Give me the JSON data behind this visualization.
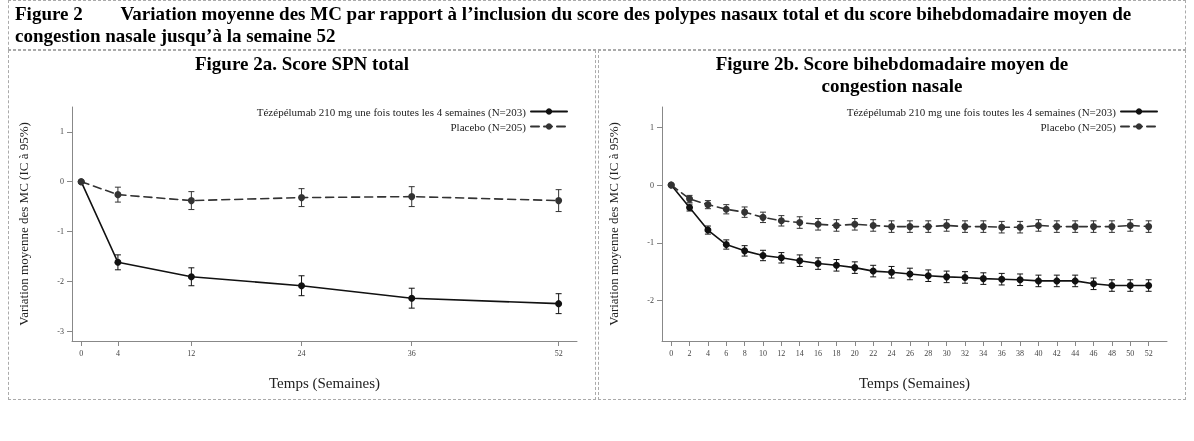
{
  "chart_data": [
    {
      "type": "line",
      "title": "Figure 2a. Score SPN total",
      "annotations": [
        "Figure 2        Variation moyenne des MC par rapport à l’inclusion du score des polypes nasaux total et du score bihebdomadaire moyen de congestion nasale jusqu’à la semaine 52"
      ],
      "xlabel": "Temps (Semaines)",
      "ylabel": "Variation moyenne des MC (IC à 95%)",
      "x": [
        0,
        4,
        12,
        24,
        36,
        52
      ],
      "xlim": [
        -1,
        54
      ],
      "xticks": [
        0,
        4,
        12,
        24,
        36,
        52
      ],
      "ylim": [
        -3.2,
        1.5
      ],
      "yticks": [
        -3,
        -2,
        -1,
        0,
        1
      ],
      "series": [
        {
          "name": "Tézépélumab 210 mg une fois toutes les 4 semaines (N=203)",
          "color": "#111111",
          "line_style": "solid",
          "values": [
            0,
            -1.62,
            -1.91,
            -2.09,
            -2.34,
            -2.45
          ],
          "errors": [
            null,
            0.15,
            0.18,
            0.2,
            0.2,
            0.2
          ]
        },
        {
          "name": "Placebo (N=205)",
          "color": "#333333",
          "line_style": "dashed",
          "values": [
            0,
            -0.26,
            -0.38,
            -0.32,
            -0.3,
            -0.38
          ],
          "errors": [
            null,
            0.15,
            0.18,
            0.18,
            0.2,
            0.22
          ]
        }
      ],
      "marker": "circle",
      "legend": "top right",
      "grid": false
    },
    {
      "type": "line",
      "title": "Figure 2b. Score bihebdomadaire moyen de congestion nasale",
      "xlabel": "Temps (Semaines)",
      "ylabel": "Variation moyenne des MC (IC à 95%)",
      "x": [
        0,
        2,
        4,
        6,
        8,
        10,
        12,
        14,
        16,
        18,
        20,
        22,
        24,
        26,
        28,
        30,
        32,
        34,
        36,
        38,
        40,
        42,
        44,
        46,
        48,
        50,
        52
      ],
      "xlim": [
        -1,
        54
      ],
      "xticks": [
        0,
        2,
        4,
        6,
        8,
        10,
        12,
        14,
        16,
        18,
        20,
        22,
        24,
        26,
        28,
        30,
        32,
        34,
        36,
        38,
        40,
        42,
        44,
        46,
        48,
        50,
        52
      ],
      "ylim": [
        -2.7,
        1.35
      ],
      "yticks": [
        -2,
        -1,
        0,
        1
      ],
      "series": [
        {
          "name": "Tézépélumab 210 mg une fois toutes les 4 semaines (N=203)",
          "color": "#111111",
          "line_style": "solid",
          "values": [
            0,
            -0.39,
            -0.78,
            -1.03,
            -1.14,
            -1.22,
            -1.26,
            -1.31,
            -1.36,
            -1.39,
            -1.43,
            -1.49,
            -1.51,
            -1.54,
            -1.57,
            -1.59,
            -1.6,
            -1.62,
            -1.63,
            -1.64,
            -1.66,
            -1.66,
            -1.66,
            -1.71,
            -1.74,
            -1.74,
            -1.74
          ],
          "errors": [
            null,
            0.06,
            0.07,
            0.08,
            0.09,
            0.09,
            0.09,
            0.1,
            0.1,
            0.1,
            0.1,
            0.1,
            0.1,
            0.1,
            0.1,
            0.1,
            0.1,
            0.1,
            0.1,
            0.1,
            0.1,
            0.1,
            0.1,
            0.1,
            0.1,
            0.1,
            0.1
          ]
        },
        {
          "name": "Placebo (N=205)",
          "color": "#333333",
          "line_style": "dashed",
          "values": [
            0,
            -0.24,
            -0.34,
            -0.42,
            -0.47,
            -0.56,
            -0.62,
            -0.65,
            -0.68,
            -0.7,
            -0.68,
            -0.7,
            -0.72,
            -0.72,
            -0.72,
            -0.7,
            -0.72,
            -0.72,
            -0.73,
            -0.73,
            -0.7,
            -0.72,
            -0.72,
            -0.72,
            -0.72,
            -0.7,
            -0.72
          ],
          "errors": [
            null,
            0.06,
            0.07,
            0.08,
            0.09,
            0.09,
            0.09,
            0.1,
            0.1,
            0.1,
            0.1,
            0.1,
            0.1,
            0.1,
            0.1,
            0.1,
            0.1,
            0.1,
            0.1,
            0.1,
            0.1,
            0.1,
            0.1,
            0.1,
            0.1,
            0.1,
            0.1
          ]
        }
      ],
      "marker": "circle",
      "legend": "top right",
      "grid": false
    }
  ]
}
